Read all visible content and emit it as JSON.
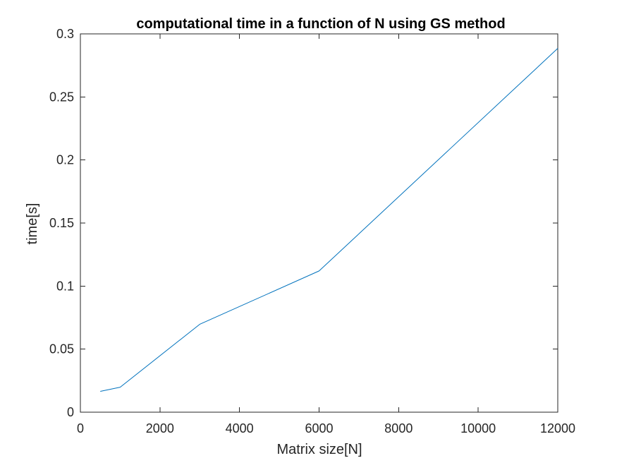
{
  "chart_data": {
    "type": "line",
    "title": "computational time in a function of N using GS method",
    "xlabel": "Matrix size[N]",
    "ylabel": "time[s]",
    "xlim": [
      0,
      12000
    ],
    "ylim": [
      0,
      0.3
    ],
    "x_ticks": [
      0,
      2000,
      4000,
      6000,
      8000,
      10000,
      12000
    ],
    "x_tick_labels": [
      "0",
      "2000",
      "4000",
      "6000",
      "8000",
      "10000",
      "12000"
    ],
    "y_ticks": [
      0,
      0.05,
      0.1,
      0.15,
      0.2,
      0.25,
      0.3
    ],
    "y_tick_labels": [
      "0",
      "0.05",
      "0.1",
      "0.15",
      "0.2",
      "0.25",
      "0.3"
    ],
    "grid": false,
    "series": [
      {
        "color": "#0072BD",
        "x": [
          500,
          1000,
          3000,
          6000,
          12000
        ],
        "y": [
          0.0165,
          0.0198,
          0.0697,
          0.112,
          0.2885
        ]
      }
    ]
  }
}
